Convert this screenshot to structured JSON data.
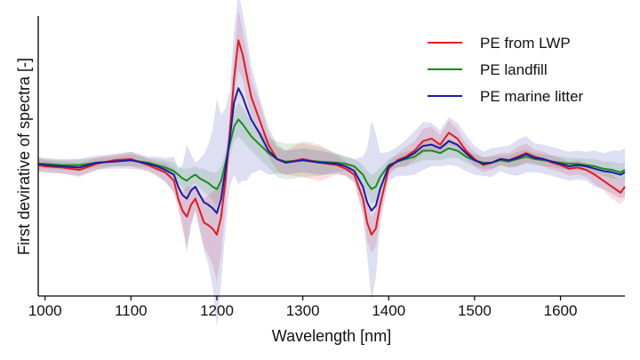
{
  "chart_data": {
    "type": "line",
    "title": "",
    "xlabel": "Wavelength [nm]",
    "ylabel": "First devirative of spectra [-]",
    "xlim": [
      992,
      1675
    ],
    "ylim": [
      -1.5,
      1.5
    ],
    "xticks": [
      1000,
      1100,
      1200,
      1300,
      1400,
      1500,
      1600
    ],
    "yticks_shown": false,
    "grid": false,
    "legend_position": "top-right",
    "x": [
      992,
      1000,
      1020,
      1040,
      1060,
      1080,
      1100,
      1120,
      1130,
      1140,
      1150,
      1155,
      1160,
      1165,
      1170,
      1175,
      1180,
      1185,
      1190,
      1195,
      1200,
      1205,
      1210,
      1215,
      1220,
      1225,
      1230,
      1235,
      1240,
      1250,
      1260,
      1270,
      1280,
      1300,
      1320,
      1340,
      1350,
      1360,
      1370,
      1375,
      1380,
      1385,
      1390,
      1400,
      1410,
      1420,
      1430,
      1440,
      1450,
      1460,
      1470,
      1480,
      1490,
      1500,
      1510,
      1520,
      1530,
      1540,
      1550,
      1560,
      1570,
      1580,
      1590,
      1600,
      1610,
      1620,
      1630,
      1640,
      1650,
      1660,
      1670,
      1675
    ],
    "series": [
      {
        "name": "PE from LWP",
        "color": "#e41a1c",
        "values": [
          -0.02,
          -0.03,
          -0.04,
          -0.06,
          -0.01,
          0.02,
          0.03,
          -0.02,
          -0.05,
          -0.08,
          -0.15,
          -0.3,
          -0.4,
          -0.45,
          -0.35,
          -0.3,
          -0.4,
          -0.5,
          -0.52,
          -0.55,
          -0.6,
          -0.45,
          -0.15,
          0.25,
          0.7,
          1.02,
          0.9,
          0.72,
          0.55,
          0.35,
          0.15,
          0.03,
          0.0,
          0.03,
          0.0,
          -0.02,
          -0.05,
          -0.1,
          -0.3,
          -0.5,
          -0.6,
          -0.55,
          -0.35,
          -0.05,
          0.02,
          0.05,
          0.1,
          0.18,
          0.2,
          0.15,
          0.25,
          0.2,
          0.1,
          0.03,
          -0.02,
          0.0,
          0.03,
          0.02,
          0.05,
          0.08,
          0.05,
          0.03,
          0.0,
          -0.02,
          -0.05,
          -0.04,
          -0.06,
          -0.1,
          -0.15,
          -0.2,
          -0.25,
          -0.2
        ],
        "band": [
          0.06,
          0.05,
          0.05,
          0.06,
          0.05,
          0.05,
          0.06,
          0.05,
          0.06,
          0.08,
          0.1,
          0.1,
          0.15,
          0.25,
          0.15,
          0.1,
          0.15,
          0.2,
          0.25,
          0.3,
          0.4,
          0.3,
          0.2,
          0.15,
          0.2,
          0.25,
          0.2,
          0.2,
          0.15,
          0.15,
          0.1,
          0.1,
          0.1,
          0.15,
          0.15,
          0.08,
          0.06,
          0.06,
          0.1,
          0.15,
          0.15,
          0.15,
          0.1,
          0.06,
          0.06,
          0.08,
          0.08,
          0.1,
          0.1,
          0.08,
          0.1,
          0.08,
          0.06,
          0.06,
          0.06,
          0.06,
          0.05,
          0.06,
          0.08,
          0.08,
          0.06,
          0.06,
          0.06,
          0.06,
          0.06,
          0.06,
          0.06,
          0.08,
          0.08,
          0.1,
          0.1,
          0.1
        ]
      },
      {
        "name": "PE landfill",
        "color": "#1a8c1a",
        "values": [
          -0.01,
          -0.01,
          -0.02,
          -0.02,
          0.0,
          0.01,
          0.02,
          0.0,
          -0.02,
          -0.04,
          -0.07,
          -0.1,
          -0.13,
          -0.15,
          -0.12,
          -0.1,
          -0.13,
          -0.15,
          -0.17,
          -0.2,
          -0.22,
          -0.15,
          0.0,
          0.15,
          0.3,
          0.36,
          0.32,
          0.27,
          0.22,
          0.15,
          0.08,
          0.03,
          0.01,
          0.02,
          0.01,
          0.0,
          -0.01,
          -0.03,
          -0.1,
          -0.17,
          -0.22,
          -0.2,
          -0.12,
          -0.02,
          0.01,
          0.03,
          0.05,
          0.1,
          0.1,
          0.08,
          0.12,
          0.1,
          0.05,
          0.02,
          0.0,
          0.0,
          0.02,
          0.01,
          0.03,
          0.05,
          0.03,
          0.02,
          0.01,
          0.0,
          -0.01,
          -0.01,
          -0.02,
          -0.03,
          -0.05,
          -0.06,
          -0.08,
          -0.06
        ],
        "band": [
          0.04,
          0.04,
          0.04,
          0.05,
          0.04,
          0.04,
          0.05,
          0.04,
          0.05,
          0.06,
          0.07,
          0.07,
          0.08,
          0.1,
          0.08,
          0.07,
          0.08,
          0.1,
          0.1,
          0.12,
          0.14,
          0.12,
          0.1,
          0.1,
          0.12,
          0.14,
          0.14,
          0.13,
          0.12,
          0.12,
          0.12,
          0.15,
          0.15,
          0.14,
          0.12,
          0.08,
          0.06,
          0.06,
          0.08,
          0.1,
          0.12,
          0.12,
          0.08,
          0.05,
          0.05,
          0.06,
          0.06,
          0.08,
          0.08,
          0.06,
          0.08,
          0.06,
          0.05,
          0.05,
          0.05,
          0.05,
          0.04,
          0.05,
          0.06,
          0.06,
          0.05,
          0.05,
          0.05,
          0.05,
          0.05,
          0.05,
          0.05,
          0.06,
          0.06,
          0.07,
          0.07,
          0.07
        ]
      },
      {
        "name": "PE marine litter",
        "color": "#1a1aaa",
        "values": [
          -0.01,
          -0.02,
          -0.03,
          -0.04,
          0.0,
          0.01,
          0.02,
          -0.01,
          -0.03,
          -0.06,
          -0.1,
          -0.2,
          -0.27,
          -0.3,
          -0.23,
          -0.2,
          -0.27,
          -0.33,
          -0.35,
          -0.38,
          -0.42,
          -0.3,
          -0.05,
          0.2,
          0.5,
          0.62,
          0.55,
          0.45,
          0.36,
          0.24,
          0.1,
          0.03,
          0.0,
          0.02,
          0.0,
          -0.01,
          -0.03,
          -0.07,
          -0.2,
          -0.33,
          -0.4,
          -0.36,
          -0.22,
          -0.03,
          0.01,
          0.04,
          0.08,
          0.14,
          0.15,
          0.12,
          0.18,
          0.15,
          0.08,
          0.02,
          -0.01,
          0.0,
          0.03,
          0.02,
          0.04,
          0.07,
          0.04,
          0.03,
          0.01,
          -0.01,
          -0.03,
          -0.02,
          -0.03,
          -0.05,
          -0.07,
          -0.08,
          -0.1,
          -0.08
        ],
        "band": [
          0.06,
          0.06,
          0.06,
          0.07,
          0.06,
          0.06,
          0.07,
          0.06,
          0.08,
          0.1,
          0.15,
          0.15,
          0.25,
          0.45,
          0.3,
          0.2,
          0.3,
          0.4,
          0.5,
          0.65,
          0.95,
          0.7,
          0.5,
          0.4,
          0.6,
          0.8,
          0.7,
          0.6,
          0.45,
          0.3,
          0.2,
          0.12,
          0.1,
          0.1,
          0.1,
          0.08,
          0.08,
          0.1,
          0.25,
          0.45,
          0.75,
          0.6,
          0.3,
          0.12,
          0.12,
          0.15,
          0.18,
          0.2,
          0.18,
          0.15,
          0.2,
          0.18,
          0.15,
          0.12,
          0.1,
          0.12,
          0.1,
          0.12,
          0.15,
          0.15,
          0.12,
          0.12,
          0.12,
          0.12,
          0.12,
          0.12,
          0.12,
          0.15,
          0.15,
          0.18,
          0.2,
          0.2
        ]
      }
    ]
  }
}
